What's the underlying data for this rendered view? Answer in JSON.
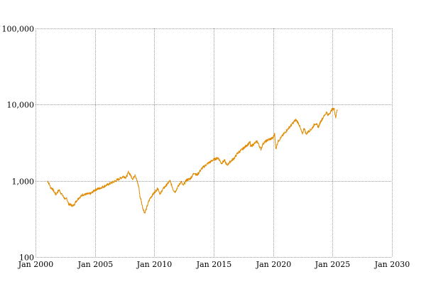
{
  "chart_data": {
    "type": "line",
    "title": "",
    "xlabel": "",
    "ylabel": "",
    "x_scale": "time",
    "y_scale": "log",
    "xlim": [
      "2000-01-01",
      "2030-01-01"
    ],
    "ylim": [
      100,
      100000
    ],
    "grid": true,
    "legend": "none",
    "x_ticks": [
      {
        "value": "2000-01-01",
        "label": "Jan 2000"
      },
      {
        "value": "2005-01-01",
        "label": "Jan 2005"
      },
      {
        "value": "2010-01-01",
        "label": "Jan 2010"
      },
      {
        "value": "2015-01-01",
        "label": "Jan 2015"
      },
      {
        "value": "2020-01-01",
        "label": "Jan 2020"
      },
      {
        "value": "2025-01-01",
        "label": "Jan 2025"
      },
      {
        "value": "2030-01-01",
        "label": "Jan 2030"
      }
    ],
    "y_ticks": [
      {
        "value": 100,
        "label": "100"
      },
      {
        "value": 1000,
        "label": "1,000"
      },
      {
        "value": 10000,
        "label": "10,000"
      },
      {
        "value": 100000,
        "label": "100,000"
      }
    ],
    "series": [
      {
        "color": "#e08a00",
        "x": [
          "2001-01-01",
          "2001-03-15",
          "2001-04-01",
          "2001-06-01",
          "2001-09-20",
          "2001-10-15",
          "2002-01-01",
          "2002-03-01",
          "2002-07-20",
          "2002-08-15",
          "2002-10-09",
          "2003-01-01",
          "2003-03-11",
          "2003-06-01",
          "2003-09-01",
          "2004-01-01",
          "2004-06-01",
          "2004-09-01",
          "2005-01-01",
          "2005-06-01",
          "2006-01-01",
          "2006-06-15",
          "2007-01-01",
          "2007-06-01",
          "2007-08-15",
          "2007-10-31",
          "2008-01-20",
          "2008-03-15",
          "2008-05-20",
          "2008-07-15",
          "2008-09-15",
          "2008-10-10",
          "2008-11-20",
          "2009-01-05",
          "2009-03-09",
          "2009-05-01",
          "2009-07-01",
          "2009-09-01",
          "2010-01-01",
          "2010-04-23",
          "2010-07-02",
          "2010-09-01",
          "2011-01-01",
          "2011-04-29",
          "2011-08-08",
          "2011-10-03",
          "2012-01-01",
          "2012-04-01",
          "2012-06-01",
          "2012-09-14",
          "2013-01-01",
          "2013-05-21",
          "2013-08-01",
          "2013-12-31",
          "2014-06-01",
          "2014-12-31",
          "2015-05-21",
          "2015-08-25",
          "2015-12-01",
          "2016-02-11",
          "2016-06-01",
          "2016-10-01",
          "2017-01-01",
          "2017-06-01",
          "2018-01-26",
          "2018-02-08",
          "2018-05-01",
          "2018-08-29",
          "2018-12-24",
          "2019-03-01",
          "2019-07-26",
          "2019-12-31",
          "2020-02-19",
          "2020-03-23",
          "2020-06-01",
          "2020-09-01",
          "2020-12-31",
          "2021-04-01",
          "2021-08-01",
          "2021-11-19",
          "2022-01-03",
          "2022-03-01",
          "2022-06-16",
          "2022-08-15",
          "2022-10-13",
          "2023-01-01",
          "2023-04-01",
          "2023-07-19",
          "2023-10-27",
          "2024-01-01",
          "2024-04-19",
          "2024-07-10",
          "2024-08-05",
          "2024-12-16",
          "2025-02-19",
          "2025-04-08",
          "2025-05-15",
          "2025-06-01"
        ],
        "y": [
          1000,
          880,
          820,
          790,
          660,
          690,
          760,
          680,
          560,
          600,
          500,
          480,
          470,
          540,
          600,
          660,
          670,
          680,
          760,
          800,
          880,
          950,
          1050,
          1150,
          1100,
          1300,
          1150,
          1050,
          1220,
          1000,
          820,
          640,
          560,
          450,
          380,
          430,
          520,
          600,
          700,
          800,
          660,
          760,
          870,
          1000,
          760,
          720,
          840,
          980,
          860,
          1020,
          1060,
          1280,
          1180,
          1450,
          1650,
          1900,
          2000,
          1700,
          1850,
          1600,
          1800,
          2000,
          2300,
          2600,
          3200,
          2800,
          3000,
          3300,
          2600,
          3100,
          3450,
          3650,
          4200,
          2600,
          3300,
          3700,
          4300,
          4800,
          5500,
          6300,
          6100,
          5600,
          4100,
          4950,
          4100,
          4500,
          4800,
          5700,
          5100,
          6000,
          7100,
          8100,
          7100,
          8600,
          8900,
          6800,
          8300,
          8600
        ]
      }
    ]
  }
}
